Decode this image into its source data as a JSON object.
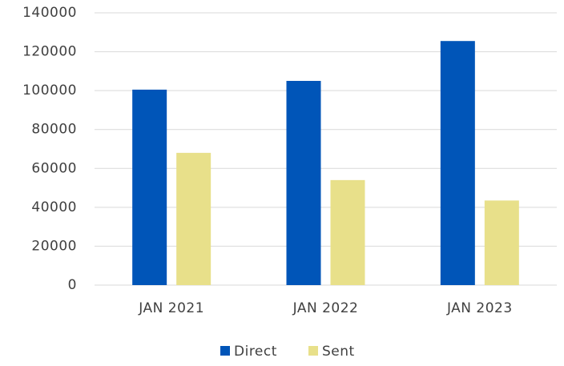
{
  "chart_data": {
    "type": "bar",
    "categories": [
      "JAN 2021",
      "JAN 2022",
      "JAN 2023"
    ],
    "series": [
      {
        "name": "Direct",
        "color": "#0055b8",
        "values": [
          100500,
          105000,
          125500
        ]
      },
      {
        "name": "Sent",
        "color": "#e8e08a",
        "values": [
          68000,
          54000,
          43500
        ]
      }
    ],
    "ylim": [
      0,
      140000
    ],
    "yticks": [
      0,
      20000,
      40000,
      60000,
      80000,
      100000,
      120000,
      140000
    ],
    "grid": true,
    "legend": "bottom"
  }
}
